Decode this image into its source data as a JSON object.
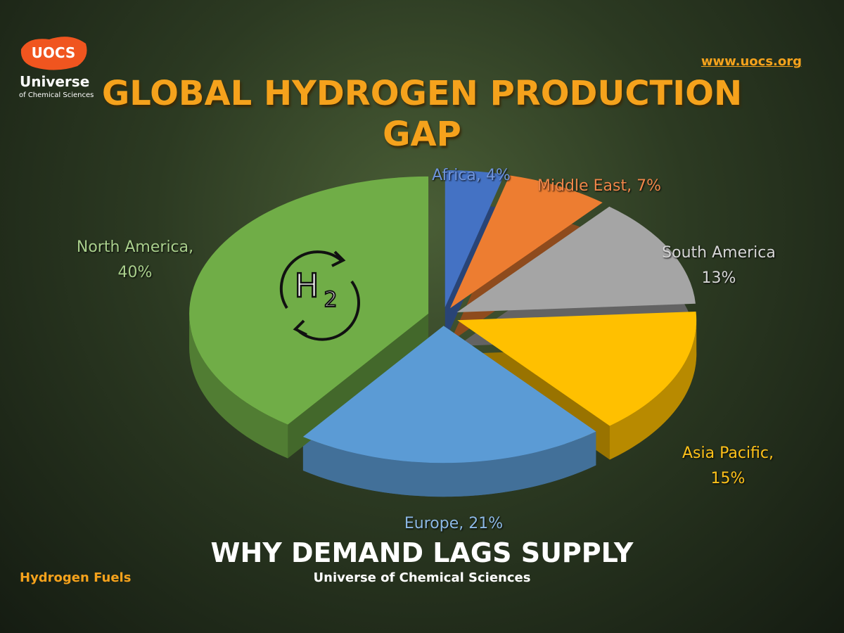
{
  "chart_data": {
    "type": "pie3d",
    "title": "GLOBAL HYDROGEN PRODUCTION GAP",
    "subtitle": "WHY DEMAND LAGS SUPPLY",
    "source": "Universe of Chemical Sciences",
    "tag": "Hydrogen Fuels",
    "website": "www.uocs.org",
    "logo": {
      "mark": "UOCS",
      "name": "Universe",
      "tagline": "of Chemical Sciences"
    },
    "icon": {
      "symbol": "H",
      "subscript": "2"
    },
    "values": [
      4,
      7,
      13,
      15,
      21,
      40
    ],
    "value_labels": [
      "Africa, 4%",
      "Middle East, 7%",
      "South America 13%",
      "Asia Pacific, 15%",
      "Europe, 21%",
      "North America, 40%"
    ],
    "colors": [
      "#4472c4",
      "#ed7d31",
      "#a5a5a5",
      "#ffc000",
      "#5b9bd5",
      "#70ad47"
    ]
  }
}
